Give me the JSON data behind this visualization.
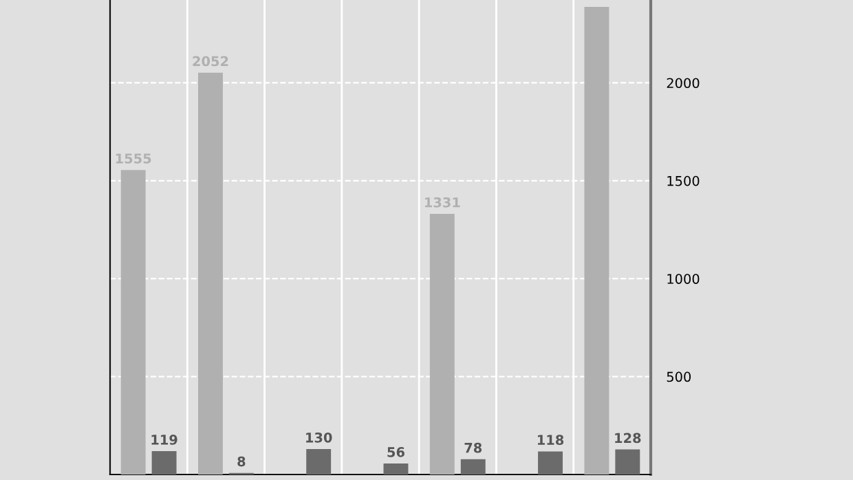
{
  "chart_data": {
    "type": "bar",
    "categories": [
      null,
      null,
      null,
      null,
      null,
      null,
      null
    ],
    "series": [
      {
        "color": "#b0b0b0",
        "values": [
          1555,
          2052,
          null,
          null,
          1331,
          null,
          2388
        ],
        "value_labels": [
          "1555",
          "2052",
          null,
          null,
          "1331",
          null,
          null
        ]
      },
      {
        "color": "#6b6b6b",
        "values": [
          119,
          8,
          130,
          56,
          78,
          118,
          128
        ],
        "value_labels": [
          "119",
          "8",
          "130",
          "56",
          "78",
          "118",
          "128"
        ]
      }
    ],
    "ylim": [
      0,
      2423
    ],
    "yticks": [
      500,
      1000,
      1500,
      2000
    ],
    "grid": true
  }
}
